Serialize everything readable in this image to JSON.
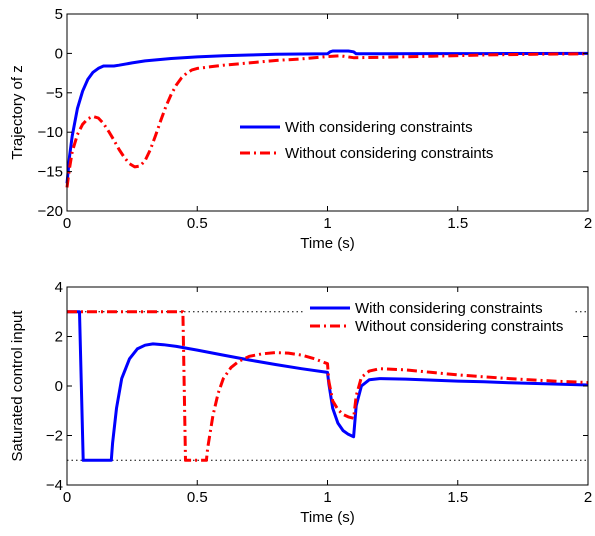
{
  "chart_data": [
    {
      "type": "line",
      "xlabel": "Time (s)",
      "ylabel": "Trajectory of z",
      "xlim": [
        0,
        2
      ],
      "ylim": [
        -20,
        5
      ],
      "xticks": [
        0,
        0.5,
        1,
        1.5,
        2
      ],
      "xtick_labels": [
        "0",
        "0.5",
        "1",
        "1.5",
        "2"
      ],
      "yticks": [
        -20,
        -15,
        -10,
        -5,
        0,
        5
      ],
      "ytick_labels": [
        "−20",
        "−15",
        "−10",
        "−5",
        "0",
        "5"
      ],
      "grid": false,
      "legend": "center-right",
      "series": [
        {
          "name": "With considering constraints",
          "color": "#0000ff",
          "style": "solid",
          "x": [
            0,
            0.01,
            0.02,
            0.04,
            0.06,
            0.08,
            0.1,
            0.12,
            0.14,
            0.16,
            0.18,
            0.2,
            0.25,
            0.3,
            0.4,
            0.5,
            0.6,
            0.7,
            0.8,
            0.9,
            1.0,
            1.01,
            1.02,
            1.08,
            1.1,
            1.11,
            1.2,
            1.4,
            1.6,
            1.8,
            2.0
          ],
          "y": [
            -16.5,
            -13,
            -10.5,
            -7.0,
            -4.8,
            -3.3,
            -2.4,
            -1.9,
            -1.6,
            -1.6,
            -1.6,
            -1.5,
            -1.2,
            -0.95,
            -0.65,
            -0.45,
            -0.3,
            -0.2,
            -0.12,
            -0.08,
            -0.05,
            0.2,
            0.3,
            0.3,
            0.2,
            -0.05,
            -0.05,
            -0.03,
            -0.02,
            -0.01,
            0
          ]
        },
        {
          "name": "Without considering constraints",
          "color": "#ff0000",
          "style": "dashdot",
          "x": [
            0,
            0.01,
            0.02,
            0.04,
            0.06,
            0.08,
            0.1,
            0.12,
            0.14,
            0.16,
            0.18,
            0.2,
            0.22,
            0.24,
            0.26,
            0.28,
            0.3,
            0.32,
            0.34,
            0.36,
            0.38,
            0.4,
            0.42,
            0.44,
            0.46,
            0.48,
            0.5,
            0.55,
            0.6,
            0.7,
            0.8,
            0.9,
            1.0,
            1.05,
            1.1,
            1.2,
            1.4,
            1.6,
            1.8,
            2.0
          ],
          "y": [
            -17,
            -14.5,
            -12.5,
            -10.3,
            -9.0,
            -8.3,
            -8.0,
            -8.2,
            -8.9,
            -9.9,
            -11.0,
            -12.2,
            -13.2,
            -14.0,
            -14.4,
            -14.3,
            -13.6,
            -12.2,
            -10.4,
            -8.5,
            -6.7,
            -5.2,
            -4.0,
            -3.1,
            -2.5,
            -2.1,
            -1.9,
            -1.7,
            -1.5,
            -1.2,
            -0.9,
            -0.7,
            -0.4,
            -0.3,
            -0.55,
            -0.5,
            -0.35,
            -0.2,
            -0.1,
            -0.05
          ]
        }
      ]
    },
    {
      "type": "line",
      "xlabel": "Time (s)",
      "ylabel": "Saturated control input",
      "xlim": [
        0,
        2
      ],
      "ylim": [
        -4,
        4
      ],
      "xticks": [
        0,
        0.5,
        1,
        1.5,
        2
      ],
      "xtick_labels": [
        "0",
        "0.5",
        "1",
        "1.5",
        "2"
      ],
      "yticks": [
        -4,
        -2,
        0,
        2,
        4
      ],
      "ytick_labels": [
        "−4",
        "−2",
        "0",
        "2",
        "4"
      ],
      "grid": false,
      "legend": "top-right",
      "reference_lines": [
        3,
        -3
      ],
      "series": [
        {
          "name": "With considering constraints",
          "color": "#0000ff",
          "style": "solid",
          "x": [
            0,
            0.048,
            0.062,
            0.17,
            0.175,
            0.19,
            0.21,
            0.24,
            0.27,
            0.3,
            0.33,
            0.37,
            0.42,
            0.5,
            0.6,
            0.7,
            0.8,
            0.9,
            1.0,
            1.005,
            1.02,
            1.04,
            1.06,
            1.08,
            1.1,
            1.11,
            1.13,
            1.16,
            1.2,
            1.3,
            1.4,
            1.5,
            1.6,
            1.7,
            1.8,
            1.9,
            2.0
          ],
          "y": [
            3,
            3,
            -3,
            -3,
            -2.3,
            -0.9,
            0.3,
            1.1,
            1.5,
            1.65,
            1.7,
            1.67,
            1.6,
            1.45,
            1.25,
            1.05,
            0.87,
            0.7,
            0.55,
            0.1,
            -0.9,
            -1.5,
            -1.8,
            -1.95,
            -2.05,
            -0.8,
            0.0,
            0.25,
            0.3,
            0.28,
            0.24,
            0.2,
            0.17,
            0.13,
            0.1,
            0.07,
            0.04
          ]
        },
        {
          "name": "Without considering constraints",
          "color": "#ff0000",
          "style": "dashdot",
          "x": [
            0,
            0.445,
            0.455,
            0.535,
            0.54,
            0.56,
            0.58,
            0.6,
            0.63,
            0.66,
            0.7,
            0.75,
            0.8,
            0.85,
            0.9,
            0.95,
            1.0,
            1.005,
            1.02,
            1.04,
            1.06,
            1.08,
            1.1,
            1.11,
            1.13,
            1.16,
            1.2,
            1.3,
            1.4,
            1.5,
            1.6,
            1.7,
            1.8,
            1.9,
            2.0
          ],
          "y": [
            3,
            3,
            -3,
            -3,
            -2.5,
            -1.2,
            -0.3,
            0.3,
            0.75,
            1.0,
            1.2,
            1.3,
            1.35,
            1.33,
            1.25,
            1.1,
            0.9,
            0.2,
            -0.6,
            -0.95,
            -1.15,
            -1.25,
            -1.3,
            -0.4,
            0.35,
            0.6,
            0.7,
            0.65,
            0.55,
            0.45,
            0.37,
            0.3,
            0.24,
            0.18,
            0.14
          ]
        }
      ]
    }
  ]
}
